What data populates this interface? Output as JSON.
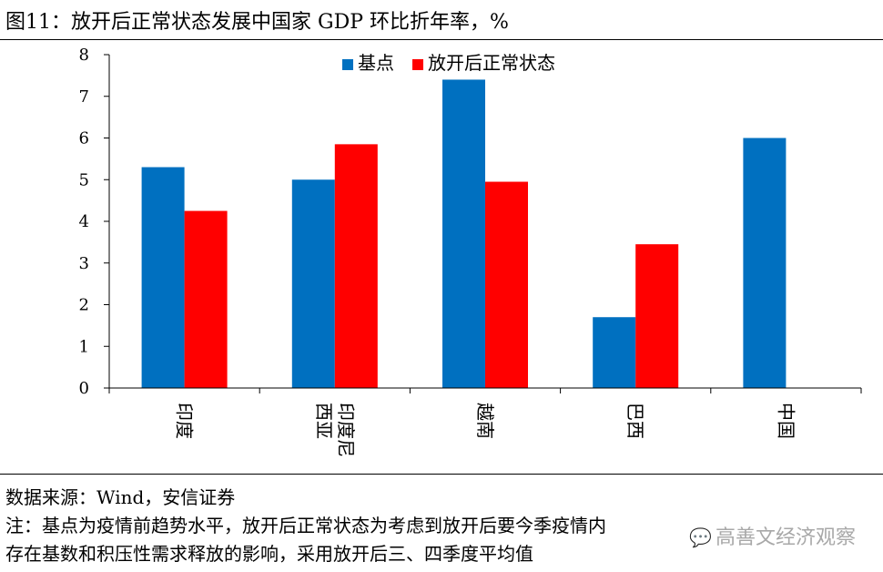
{
  "figure": {
    "title": "图11：放开后正常状态发展中国家 GDP 环比折年率，%"
  },
  "chart_data": {
    "type": "bar",
    "categories": [
      "印度",
      "印度尼西亚",
      "越南",
      "巴西",
      "中国"
    ],
    "category_lines": [
      [
        "印度"
      ],
      [
        "印度尼",
        "西亚"
      ],
      [
        "越南"
      ],
      [
        "巴西"
      ],
      [
        "中国"
      ]
    ],
    "series": [
      {
        "name": "基点",
        "values": [
          5.3,
          5.0,
          7.4,
          1.7,
          6.0
        ],
        "color": "#0070C0"
      },
      {
        "name": "放开后正常状态",
        "values": [
          4.25,
          5.85,
          4.95,
          3.45,
          null
        ],
        "color": "#FF0000"
      }
    ],
    "ylim": [
      0,
      8
    ],
    "yticks": [
      "0",
      "1",
      "2",
      "3",
      "4",
      "5",
      "6",
      "7",
      "8"
    ],
    "legend_position": "top-center",
    "grid": false
  },
  "footer": {
    "source": "数据来源：Wind，安信证券",
    "note_line1": "注：基点为疫情前趋势水平，放开后正常状态为考虑到放开后要今季疫情内",
    "note_line2": "存在基数和积压性需求释放的影响，采用放开后三、四季度平均值",
    "watermark": "高善文经济观察"
  }
}
